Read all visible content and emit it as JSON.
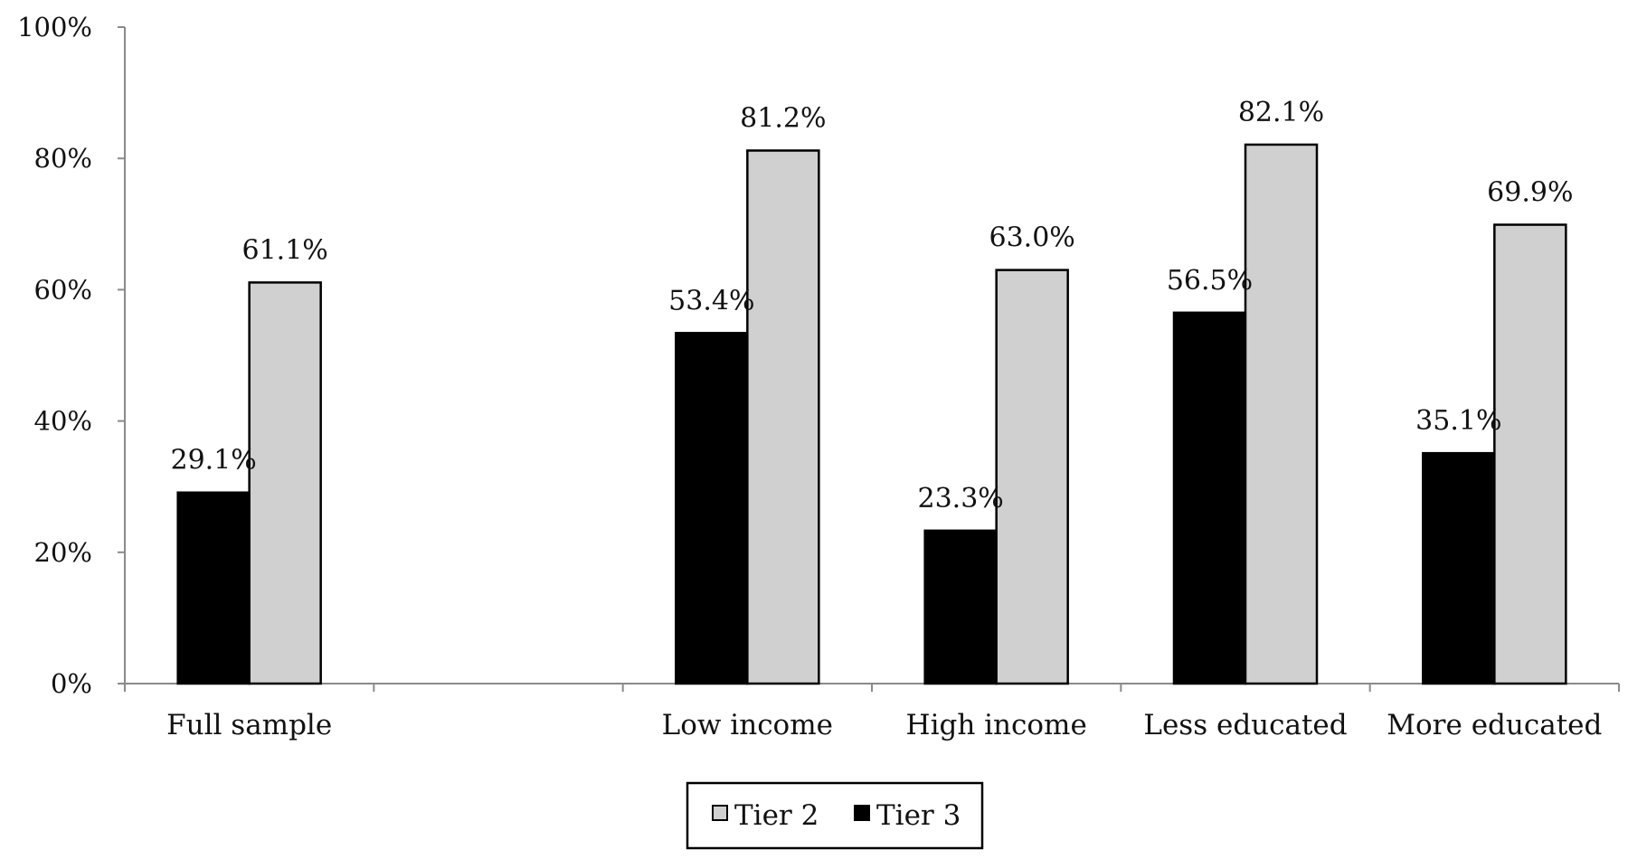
{
  "chart_data": {
    "type": "bar",
    "categories": [
      "Full sample",
      "",
      "Low income",
      "High income",
      "Less educated",
      "More educated"
    ],
    "series": [
      {
        "name": "Tier 3",
        "color": "#000000",
        "values": [
          29.1,
          null,
          53.4,
          23.3,
          56.5,
          35.1
        ],
        "labels": [
          "29.1%",
          "",
          "53.4%",
          "23.3%",
          "56.5%",
          "35.1%"
        ]
      },
      {
        "name": "Tier 2",
        "color": "#d0d0d0",
        "values": [
          61.1,
          null,
          81.2,
          63.0,
          82.1,
          69.9
        ],
        "labels": [
          "61.1%",
          "",
          "81.2%",
          "63.0%",
          "82.1%",
          "69.9%"
        ]
      }
    ],
    "y_ticks": [
      "0%",
      "20%",
      "40%",
      "60%",
      "80%",
      "100%"
    ],
    "ylim": [
      0,
      100
    ],
    "title": "",
    "xlabel": "",
    "ylabel": "",
    "grid": false,
    "legend": {
      "position": "bottom-center",
      "entries": [
        "Tier 2",
        "Tier 3"
      ]
    }
  }
}
